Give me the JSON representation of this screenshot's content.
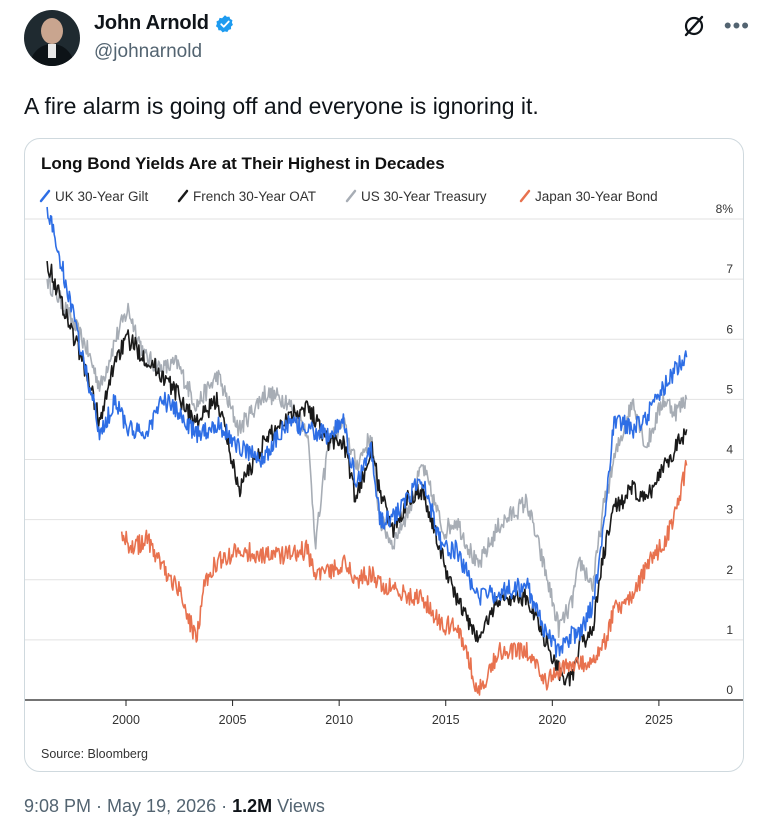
{
  "author": {
    "name": "John Arnold",
    "handle": "@johnarnold",
    "verified_color": "#1d9bf0"
  },
  "tweet": {
    "text": "A fire alarm is going off and everyone is ignoring it."
  },
  "footer": {
    "time": "9:08 PM",
    "sep1": " · ",
    "date": "May 19, 2026",
    "sep2": " · ",
    "views_count": "1.2M",
    "views_label": " Views"
  },
  "icons": {
    "grok": "grok-icon",
    "more": "more-icon",
    "verified": "verified-badge-icon"
  },
  "chart_data": {
    "type": "line",
    "title": "Long Bond Yields Are at Their Highest in Decades",
    "source": "Source: Bloomberg",
    "xlim": [
      1996.2,
      2026.6
    ],
    "ylim": [
      0,
      8
    ],
    "x_ticks": [
      2000,
      2005,
      2010,
      2015,
      2020,
      2025
    ],
    "x_tick_labels": [
      "2000",
      "2005",
      "2010",
      "2015",
      "2020",
      "2025"
    ],
    "y_ticks": [
      0,
      1,
      2,
      3,
      4,
      5,
      6,
      7,
      8
    ],
    "y_tick_labels": [
      "0",
      "1",
      "2",
      "3",
      "4",
      "5",
      "6",
      "7",
      "8%"
    ],
    "grid": true,
    "legend_position": "top",
    "series": [
      {
        "name": "US 30-Year Treasury",
        "color": "#a7adb5",
        "points": [
          [
            1996.3,
            7.0
          ],
          [
            1997,
            6.6
          ],
          [
            1998.1,
            5.9
          ],
          [
            1998.8,
            5.2
          ],
          [
            1999.5,
            6.0
          ],
          [
            2000.1,
            6.5
          ],
          [
            2000.9,
            5.7
          ],
          [
            2001.7,
            5.5
          ],
          [
            2002.4,
            5.6
          ],
          [
            2003.3,
            4.9
          ],
          [
            2004.3,
            5.4
          ],
          [
            2005.3,
            4.5
          ],
          [
            2006.5,
            5.1
          ],
          [
            2007.5,
            5.0
          ],
          [
            2008.5,
            4.5
          ],
          [
            2008.9,
            2.6
          ],
          [
            2009.5,
            4.3
          ],
          [
            2010.2,
            4.6
          ],
          [
            2010.8,
            3.9
          ],
          [
            2011.5,
            4.4
          ],
          [
            2011.9,
            3.0
          ],
          [
            2012.5,
            2.6
          ],
          [
            2013.3,
            3.2
          ],
          [
            2013.9,
            3.9
          ],
          [
            2014.9,
            2.8
          ],
          [
            2015.5,
            3.0
          ],
          [
            2016.5,
            2.2
          ],
          [
            2017.5,
            2.9
          ],
          [
            2018.8,
            3.3
          ],
          [
            2019.7,
            2.1
          ],
          [
            2020.3,
            1.2
          ],
          [
            2020.9,
            1.6
          ],
          [
            2021.3,
            2.3
          ],
          [
            2021.9,
            1.9
          ],
          [
            2022.4,
            3.2
          ],
          [
            2022.9,
            4.0
          ],
          [
            2023.8,
            5.0
          ],
          [
            2024.4,
            4.2
          ],
          [
            2025.2,
            5.0
          ],
          [
            2025.8,
            4.8
          ],
          [
            2026.3,
            5.0
          ]
        ]
      },
      {
        "name": "French 30-Year OAT",
        "color": "#1a1a1a",
        "points": [
          [
            1996.3,
            7.3
          ],
          [
            1997,
            6.6
          ],
          [
            1998.1,
            5.5
          ],
          [
            1998.8,
            4.6
          ],
          [
            1999.5,
            5.7
          ],
          [
            2000.1,
            6.0
          ],
          [
            2000.9,
            5.7
          ],
          [
            2001.7,
            5.4
          ],
          [
            2002.4,
            5.1
          ],
          [
            2003.3,
            4.6
          ],
          [
            2004.3,
            5.0
          ],
          [
            2005.3,
            3.5
          ],
          [
            2006.5,
            4.3
          ],
          [
            2007.5,
            4.7
          ],
          [
            2008.5,
            4.9
          ],
          [
            2009.5,
            4.3
          ],
          [
            2010.2,
            4.3
          ],
          [
            2010.8,
            3.3
          ],
          [
            2011.5,
            4.2
          ],
          [
            2011.9,
            3.5
          ],
          [
            2012.5,
            2.8
          ],
          [
            2013.3,
            3.4
          ],
          [
            2013.9,
            3.5
          ],
          [
            2014.9,
            2.3
          ],
          [
            2015.5,
            1.7
          ],
          [
            2016.5,
            1.0
          ],
          [
            2017.5,
            1.7
          ],
          [
            2018.8,
            1.7
          ],
          [
            2019.7,
            1.0
          ],
          [
            2020.3,
            0.5
          ],
          [
            2020.9,
            0.3
          ],
          [
            2021.3,
            0.9
          ],
          [
            2021.9,
            1.2
          ],
          [
            2022.4,
            2.4
          ],
          [
            2022.9,
            3.2
          ],
          [
            2023.8,
            3.5
          ],
          [
            2024.4,
            3.3
          ],
          [
            2025.2,
            3.9
          ],
          [
            2025.8,
            4.2
          ],
          [
            2026.3,
            4.5
          ]
        ]
      },
      {
        "name": "UK 30-Year Gilt",
        "color": "#2e6ee5",
        "points": [
          [
            1996.3,
            8.2
          ],
          [
            1997,
            7.2
          ],
          [
            1998.1,
            5.5
          ],
          [
            1998.8,
            4.4
          ],
          [
            1999.5,
            5.0
          ],
          [
            2000.1,
            4.5
          ],
          [
            2000.9,
            4.4
          ],
          [
            2001.7,
            5.0
          ],
          [
            2002.4,
            4.8
          ],
          [
            2003.3,
            4.4
          ],
          [
            2004.3,
            4.6
          ],
          [
            2005.3,
            4.2
          ],
          [
            2006.5,
            4.0
          ],
          [
            2007.5,
            4.6
          ],
          [
            2008.5,
            4.5
          ],
          [
            2009.5,
            4.4
          ],
          [
            2010.2,
            4.6
          ],
          [
            2010.8,
            3.6
          ],
          [
            2011.5,
            4.2
          ],
          [
            2011.9,
            3.0
          ],
          [
            2012.5,
            3.0
          ],
          [
            2013.3,
            3.4
          ],
          [
            2013.9,
            3.7
          ],
          [
            2014.9,
            2.5
          ],
          [
            2015.5,
            2.5
          ],
          [
            2016.5,
            1.7
          ],
          [
            2017.5,
            1.8
          ],
          [
            2018.8,
            1.9
          ],
          [
            2019.7,
            1.1
          ],
          [
            2020.3,
            0.8
          ],
          [
            2020.9,
            1.1
          ],
          [
            2021.3,
            1.1
          ],
          [
            2021.9,
            1.6
          ],
          [
            2022.4,
            2.8
          ],
          [
            2022.9,
            4.7
          ],
          [
            2023.8,
            4.5
          ],
          [
            2024.4,
            4.7
          ],
          [
            2025.2,
            5.2
          ],
          [
            2025.8,
            5.5
          ],
          [
            2026.3,
            5.7
          ]
        ]
      },
      {
        "name": "Japan 30-Year Bond",
        "color": "#e8724f",
        "points": [
          [
            1999.8,
            2.8
          ],
          [
            2000.3,
            2.5
          ],
          [
            2001.0,
            2.7
          ],
          [
            2001.7,
            2.2
          ],
          [
            2002.4,
            1.9
          ],
          [
            2003.3,
            1.0
          ],
          [
            2003.7,
            2.0
          ],
          [
            2004.3,
            2.3
          ],
          [
            2005.3,
            2.5
          ],
          [
            2006.5,
            2.4
          ],
          [
            2007.5,
            2.4
          ],
          [
            2008.5,
            2.5
          ],
          [
            2008.9,
            2.1
          ],
          [
            2009.5,
            2.1
          ],
          [
            2010.2,
            2.3
          ],
          [
            2010.8,
            2.0
          ],
          [
            2011.5,
            2.1
          ],
          [
            2011.9,
            1.9
          ],
          [
            2012.5,
            1.9
          ],
          [
            2013.3,
            1.7
          ],
          [
            2013.9,
            1.7
          ],
          [
            2014.9,
            1.2
          ],
          [
            2015.5,
            1.3
          ],
          [
            2016.3,
            0.4
          ],
          [
            2016.5,
            0.1
          ],
          [
            2017.5,
            0.8
          ],
          [
            2018.8,
            0.8
          ],
          [
            2019.7,
            0.3
          ],
          [
            2020.3,
            0.5
          ],
          [
            2020.9,
            0.6
          ],
          [
            2021.3,
            0.6
          ],
          [
            2021.9,
            0.7
          ],
          [
            2022.4,
            0.9
          ],
          [
            2022.9,
            1.5
          ],
          [
            2023.8,
            1.7
          ],
          [
            2024.4,
            2.2
          ],
          [
            2025.2,
            2.6
          ],
          [
            2025.8,
            3.1
          ],
          [
            2026.3,
            3.9
          ]
        ]
      }
    ]
  }
}
